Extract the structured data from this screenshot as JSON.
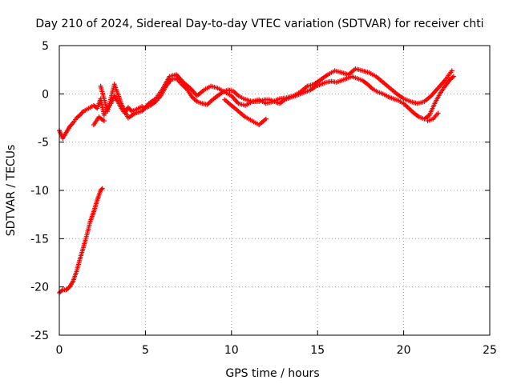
{
  "chart_data": {
    "type": "scatter",
    "title": "Day 210 of 2024, Sidereal Day-to-day VTEC variation (SDTVAR) for receiver chti",
    "xlabel": "GPS time / hours",
    "ylabel": "SDTVAR / TECUs",
    "xlim": [
      0,
      25
    ],
    "ylim": [
      -25,
      5
    ],
    "x_ticks": [
      0,
      5,
      10,
      15,
      20,
      25
    ],
    "x_tick_labels": [
      "0",
      "5",
      "10",
      "15",
      "20",
      "25"
    ],
    "y_ticks": [
      -25,
      -20,
      -15,
      -10,
      -5,
      0,
      5
    ],
    "y_tick_labels": [
      "-25",
      "-20",
      "-15",
      "-10",
      "-5",
      "0",
      "5"
    ],
    "grid": true,
    "marker": "+",
    "series": [
      {
        "name": "SDTVAR lower arc",
        "color": "#ff0000",
        "x": [
          0.0,
          0.2,
          0.4,
          0.6,
          0.8,
          1.0,
          1.2,
          1.4,
          1.6,
          1.8,
          2.0,
          2.2,
          2.4,
          2.5
        ],
        "y": [
          -20.6,
          -20.3,
          -20.3,
          -20.0,
          -19.4,
          -18.4,
          -17.1,
          -15.9,
          -14.6,
          -13.2,
          -12.2,
          -11.0,
          -10.0,
          -9.8
        ]
      },
      {
        "name": "SDTVAR main band",
        "color": "#ff0000",
        "x": [
          0.0,
          0.2,
          0.4,
          0.6,
          0.8,
          1.0,
          1.2,
          1.4,
          1.6,
          1.8,
          2.0,
          2.2,
          2.4,
          2.6,
          2.8,
          3.0,
          3.2,
          3.4,
          3.6,
          3.8,
          4.0,
          4.2,
          4.5,
          4.8,
          5.0,
          5.3,
          5.6,
          5.9,
          6.2,
          6.5,
          6.8,
          7.1,
          7.4,
          7.7,
          8.0,
          8.3,
          8.6,
          8.9,
          9.2,
          9.5,
          9.8,
          10.1,
          10.4,
          10.7,
          11.0,
          11.3,
          11.6,
          11.9,
          12.2,
          12.5,
          12.8,
          13.1,
          13.4,
          13.7,
          14.0,
          14.3,
          14.6,
          14.9,
          15.2,
          15.5,
          15.8,
          16.1,
          16.4,
          16.7,
          17.0,
          17.3,
          17.6,
          17.9,
          18.2,
          18.5,
          18.8,
          19.1,
          19.4,
          19.7,
          20.0,
          20.3,
          20.6,
          20.9,
          21.2,
          21.5,
          21.8,
          22.1,
          22.4,
          22.7,
          22.9
        ],
        "y": [
          -3.8,
          -4.6,
          -4.0,
          -3.4,
          -3.0,
          -2.5,
          -2.2,
          -1.8,
          -1.6,
          -1.4,
          -1.2,
          -1.5,
          -0.5,
          -2.2,
          -1.5,
          -1.0,
          -0.2,
          -0.8,
          -1.5,
          -2.0,
          -1.4,
          -1.8,
          -1.6,
          -1.3,
          -1.5,
          -1.2,
          -0.8,
          -0.2,
          0.8,
          1.5,
          1.6,
          1.0,
          0.5,
          -0.3,
          -0.8,
          -1.0,
          -1.1,
          -0.6,
          -0.2,
          0.2,
          0.4,
          0.3,
          -0.2,
          -0.5,
          -0.7,
          -0.8,
          -0.8,
          -0.6,
          -0.6,
          -0.8,
          -1.0,
          -0.6,
          -0.4,
          -0.2,
          0.0,
          0.2,
          0.4,
          0.8,
          1.0,
          1.2,
          1.3,
          1.2,
          1.4,
          1.6,
          1.8,
          1.6,
          1.4,
          1.0,
          0.5,
          0.2,
          0.0,
          -0.3,
          -0.5,
          -0.7,
          -1.0,
          -1.5,
          -2.0,
          -2.4,
          -2.6,
          -2.2,
          -1.0,
          0.0,
          0.8,
          1.5,
          1.8
        ]
      },
      {
        "name": "SDTVAR upper band",
        "color": "#ff0000",
        "x": [
          2.4,
          2.8,
          3.2,
          3.6,
          4.0,
          4.4,
          4.8,
          5.2,
          5.6,
          6.0,
          6.4,
          6.8,
          7.2,
          7.6,
          8.0,
          8.4,
          8.8,
          9.2,
          9.6,
          10.0,
          10.4,
          10.8,
          11.2,
          11.6,
          12.0,
          12.4,
          12.8,
          13.2,
          13.6,
          14.0,
          14.4,
          14.8,
          15.2,
          15.6,
          16.0,
          16.4,
          16.8,
          17.2,
          17.6,
          18.0,
          18.4,
          18.8,
          19.2,
          19.6,
          20.0,
          20.4,
          20.8,
          21.2,
          21.6,
          22.0,
          22.4,
          22.8
        ],
        "y": [
          0.8,
          -1.8,
          1.0,
          -1.0,
          -2.5,
          -2.0,
          -1.8,
          -1.0,
          -0.5,
          0.5,
          1.8,
          2.0,
          1.2,
          0.6,
          -0.2,
          0.4,
          0.8,
          0.6,
          0.2,
          -0.2,
          -1.0,
          -1.2,
          -0.8,
          -0.6,
          -1.0,
          -0.8,
          -0.5,
          -0.4,
          -0.2,
          0.2,
          0.8,
          1.0,
          1.5,
          2.0,
          2.4,
          2.2,
          2.0,
          2.6,
          2.4,
          2.2,
          1.8,
          1.2,
          0.6,
          0.0,
          -0.5,
          -0.8,
          -1.0,
          -0.8,
          -0.2,
          0.6,
          1.4,
          2.4
        ]
      },
      {
        "name": "SDTVAR dip branch",
        "color": "#ff0000",
        "x": [
          2.0,
          2.3,
          2.6,
          9.6,
          10.0,
          10.4,
          10.8,
          11.2,
          11.6,
          12.0,
          21.4,
          21.7,
          22.0
        ],
        "y": [
          -3.2,
          -2.4,
          -2.8,
          -0.6,
          -1.2,
          -1.8,
          -2.4,
          -2.8,
          -3.2,
          -2.6,
          -2.8,
          -2.6,
          -2.0
        ]
      }
    ]
  }
}
